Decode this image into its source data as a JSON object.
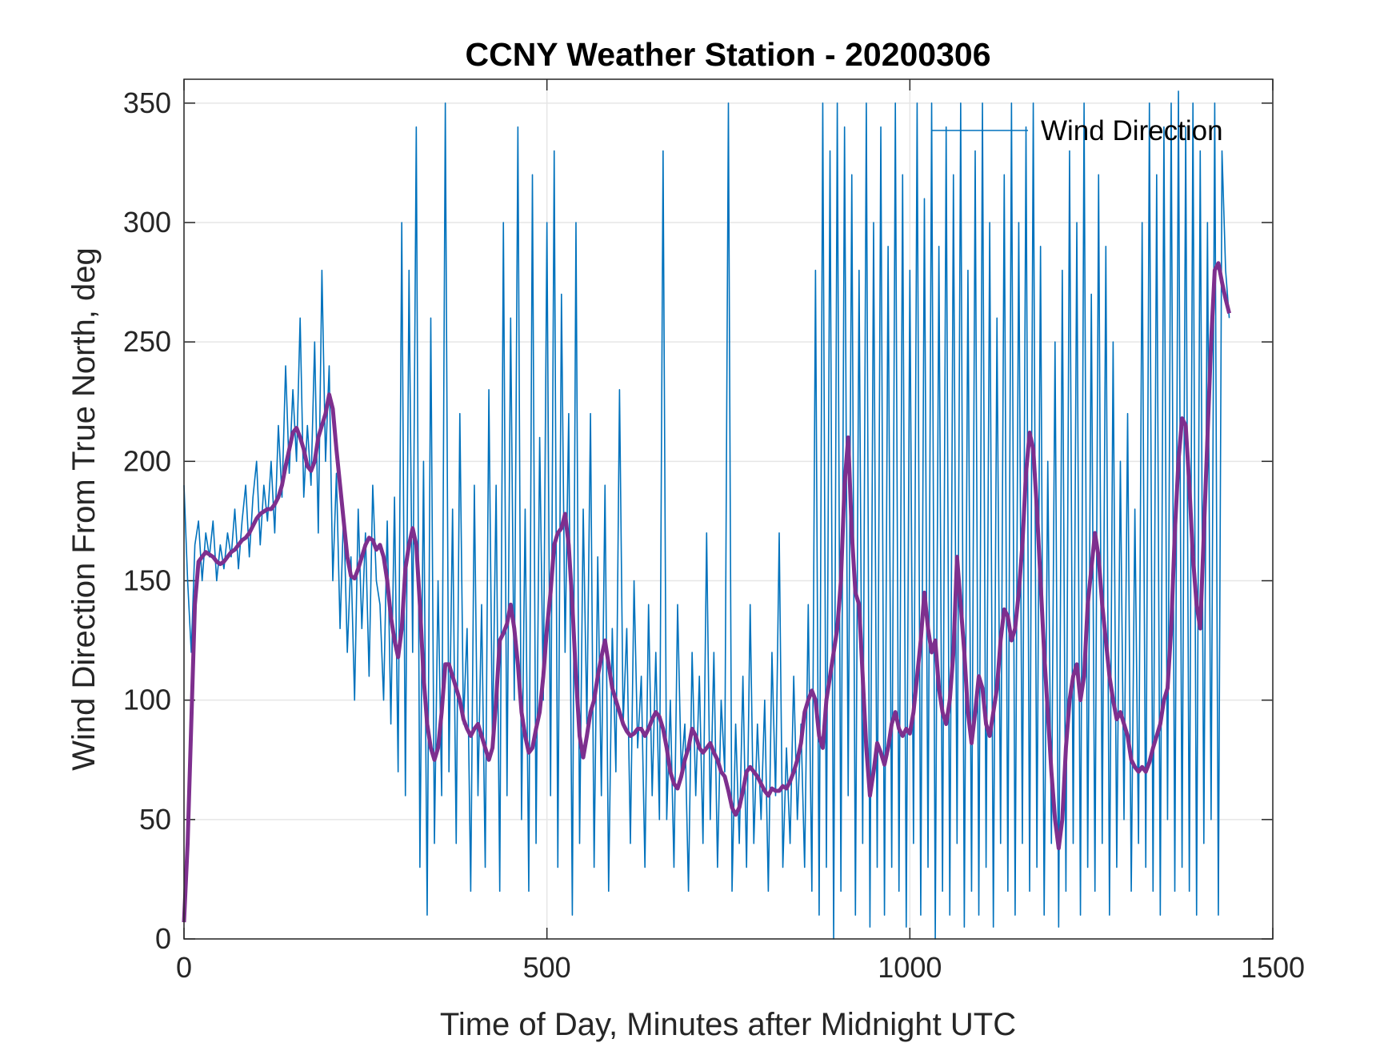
{
  "chart_data": {
    "type": "line",
    "title": "CCNY Weather Station - 20200306",
    "xlabel": "Time of Day, Minutes after Midnight UTC",
    "ylabel": "Wind Direction From True North, deg",
    "x": [
      0,
      5,
      10,
      15,
      20,
      25,
      30,
      35,
      40,
      45,
      50,
      55,
      60,
      65,
      70,
      75,
      80,
      85,
      90,
      95,
      100,
      105,
      110,
      115,
      120,
      125,
      130,
      135,
      140,
      145,
      150,
      155,
      160,
      165,
      170,
      175,
      180,
      185,
      190,
      195,
      200,
      205,
      210,
      215,
      220,
      225,
      230,
      235,
      240,
      245,
      250,
      255,
      260,
      265,
      270,
      275,
      280,
      285,
      290,
      295,
      300,
      305,
      310,
      315,
      320,
      325,
      330,
      335,
      340,
      345,
      350,
      355,
      360,
      365,
      370,
      375,
      380,
      385,
      390,
      395,
      400,
      405,
      410,
      415,
      420,
      425,
      430,
      435,
      440,
      445,
      450,
      455,
      460,
      465,
      470,
      475,
      480,
      485,
      490,
      495,
      500,
      505,
      510,
      515,
      520,
      525,
      530,
      535,
      540,
      545,
      550,
      555,
      560,
      565,
      570,
      575,
      580,
      585,
      590,
      595,
      600,
      605,
      610,
      615,
      620,
      625,
      630,
      635,
      640,
      645,
      650,
      655,
      660,
      665,
      670,
      675,
      680,
      685,
      690,
      695,
      700,
      705,
      710,
      715,
      720,
      725,
      730,
      735,
      740,
      745,
      750,
      755,
      760,
      765,
      770,
      775,
      780,
      785,
      790,
      795,
      800,
      805,
      810,
      815,
      820,
      825,
      830,
      835,
      840,
      845,
      850,
      855,
      860,
      865,
      870,
      875,
      880,
      885,
      890,
      895,
      900,
      905,
      910,
      915,
      920,
      925,
      930,
      935,
      940,
      945,
      950,
      955,
      960,
      965,
      970,
      975,
      980,
      985,
      990,
      995,
      1000,
      1005,
      1010,
      1015,
      1020,
      1025,
      1030,
      1035,
      1040,
      1045,
      1050,
      1055,
      1060,
      1065,
      1070,
      1075,
      1080,
      1085,
      1090,
      1095,
      1100,
      1105,
      1110,
      1115,
      1120,
      1125,
      1130,
      1135,
      1140,
      1145,
      1150,
      1155,
      1160,
      1165,
      1170,
      1175,
      1180,
      1185,
      1190,
      1195,
      1200,
      1205,
      1210,
      1215,
      1220,
      1225,
      1230,
      1235,
      1240,
      1245,
      1250,
      1255,
      1260,
      1265,
      1270,
      1275,
      1280,
      1285,
      1290,
      1295,
      1300,
      1305,
      1310,
      1315,
      1320,
      1325,
      1330,
      1335,
      1340,
      1345,
      1350,
      1355,
      1360,
      1365,
      1370,
      1375,
      1380,
      1385,
      1390,
      1395,
      1400,
      1405,
      1410,
      1415,
      1420,
      1425,
      1430,
      1435,
      1440
    ],
    "series": [
      {
        "name": "Wind Direction",
        "color": "#0072bd",
        "width": 1.6,
        "values": [
          190,
          150,
          120,
          165,
          175,
          150,
          170,
          160,
          175,
          150,
          165,
          155,
          170,
          160,
          180,
          155,
          175,
          190,
          160,
          185,
          200,
          165,
          190,
          175,
          200,
          170,
          215,
          185,
          240,
          195,
          230,
          200,
          260,
          185,
          215,
          190,
          250,
          170,
          280,
          200,
          240,
          150,
          195,
          130,
          180,
          120,
          160,
          100,
          180,
          130,
          170,
          110,
          190,
          150,
          140,
          100,
          175,
          90,
          185,
          70,
          300,
          60,
          280,
          120,
          340,
          30,
          200,
          10,
          260,
          40,
          150,
          60,
          350,
          70,
          180,
          40,
          220,
          90,
          130,
          20,
          190,
          60,
          140,
          30,
          230,
          80,
          190,
          20,
          300,
          60,
          260,
          100,
          340,
          50,
          180,
          20,
          320,
          40,
          210,
          100,
          300,
          60,
          330,
          30,
          270,
          120,
          220,
          10,
          300,
          40,
          180,
          90,
          220,
          30,
          160,
          60,
          190,
          20,
          130,
          70,
          230,
          90,
          130,
          40,
          150,
          80,
          110,
          30,
          140,
          60,
          120,
          50,
          330,
          50,
          100,
          30,
          140,
          70,
          90,
          20,
          120,
          60,
          110,
          40,
          170,
          50,
          120,
          30,
          100,
          70,
          350,
          20,
          90,
          40,
          110,
          30,
          140,
          40,
          90,
          50,
          100,
          20,
          120,
          60,
          170,
          30,
          80,
          40,
          110,
          50,
          90,
          30,
          140,
          20,
          280,
          10,
          350,
          30,
          330,
          0,
          350,
          20,
          340,
          60,
          320,
          10,
          280,
          40,
          350,
          5,
          300,
          30,
          340,
          10,
          290,
          30,
          350,
          20,
          320,
          5,
          280,
          40,
          350,
          10,
          310,
          30,
          350,
          0,
          290,
          20,
          340,
          10,
          320,
          40,
          350,
          5,
          280,
          20,
          330,
          10,
          350,
          30,
          300,
          5,
          260,
          40,
          320,
          20,
          350,
          10,
          300,
          40,
          340,
          20,
          350,
          30,
          290,
          10,
          200,
          40,
          250,
          5,
          280,
          20,
          330,
          40,
          300,
          10,
          350,
          30,
          270,
          20,
          320,
          40,
          290,
          10,
          250,
          30,
          200,
          50,
          220,
          20,
          180,
          40,
          300,
          30,
          350,
          20,
          320,
          10,
          340,
          50,
          350,
          20,
          355,
          30,
          340,
          20,
          350,
          10,
          330,
          40,
          300,
          50,
          350,
          10,
          330,
          280,
          260
        ]
      },
      {
        "color": "#7e2f8e",
        "width": 5,
        "values": [
          7,
          40,
          90,
          140,
          158,
          160,
          162,
          161,
          160,
          158,
          157,
          158,
          160,
          162,
          163,
          165,
          167,
          168,
          170,
          173,
          176,
          178,
          179,
          180,
          180,
          182,
          185,
          190,
          198,
          205,
          212,
          214,
          210,
          205,
          198,
          196,
          200,
          210,
          215,
          220,
          228,
          222,
          205,
          190,
          175,
          160,
          152,
          151,
          155,
          160,
          165,
          168,
          167,
          163,
          165,
          160,
          150,
          135,
          125,
          118,
          130,
          155,
          165,
          172,
          165,
          140,
          110,
          90,
          80,
          75,
          80,
          95,
          115,
          115,
          110,
          105,
          100,
          92,
          88,
          85,
          88,
          90,
          85,
          80,
          75,
          80,
          100,
          125,
          128,
          132,
          140,
          130,
          115,
          95,
          85,
          78,
          80,
          88,
          95,
          110,
          130,
          145,
          165,
          170,
          172,
          178,
          165,
          140,
          110,
          85,
          76,
          85,
          95,
          100,
          110,
          118,
          125,
          115,
          105,
          100,
          95,
          90,
          87,
          85,
          86,
          88,
          88,
          85,
          88,
          92,
          95,
          93,
          88,
          80,
          70,
          65,
          63,
          68,
          75,
          80,
          88,
          85,
          80,
          78,
          80,
          82,
          78,
          75,
          70,
          68,
          62,
          55,
          52,
          55,
          62,
          70,
          72,
          70,
          68,
          65,
          62,
          60,
          63,
          62,
          62,
          64,
          63,
          66,
          70,
          75,
          82,
          95,
          100,
          104,
          100,
          85,
          80,
          100,
          110,
          120,
          130,
          150,
          190,
          210,
          170,
          145,
          140,
          110,
          80,
          60,
          70,
          82,
          78,
          73,
          80,
          90,
          95,
          88,
          85,
          88,
          86,
          95,
          110,
          125,
          145,
          130,
          120,
          125,
          105,
          95,
          90,
          100,
          120,
          160,
          140,
          120,
          95,
          82,
          95,
          110,
          105,
          90,
          85,
          95,
          105,
          125,
          138,
          135,
          125,
          130,
          145,
          165,
          195,
          212,
          205,
          180,
          150,
          120,
          95,
          70,
          50,
          38,
          50,
          80,
          100,
          110,
          115,
          100,
          110,
          140,
          155,
          170,
          160,
          140,
          125,
          110,
          100,
          92,
          95,
          90,
          85,
          75,
          72,
          70,
          72,
          70,
          74,
          80,
          85,
          90,
          100,
          105,
          130,
          170,
          200,
          218,
          215,
          190,
          160,
          140,
          130,
          170,
          210,
          250,
          280,
          283,
          275,
          268,
          262
        ]
      }
    ],
    "xlim": [
      0,
      1500
    ],
    "xticks": [
      0,
      500,
      1000,
      1500
    ],
    "ylim": [
      0,
      360
    ],
    "yticks": [
      0,
      50,
      100,
      150,
      200,
      250,
      300,
      350
    ],
    "grid": true,
    "legend": "northeast"
  }
}
